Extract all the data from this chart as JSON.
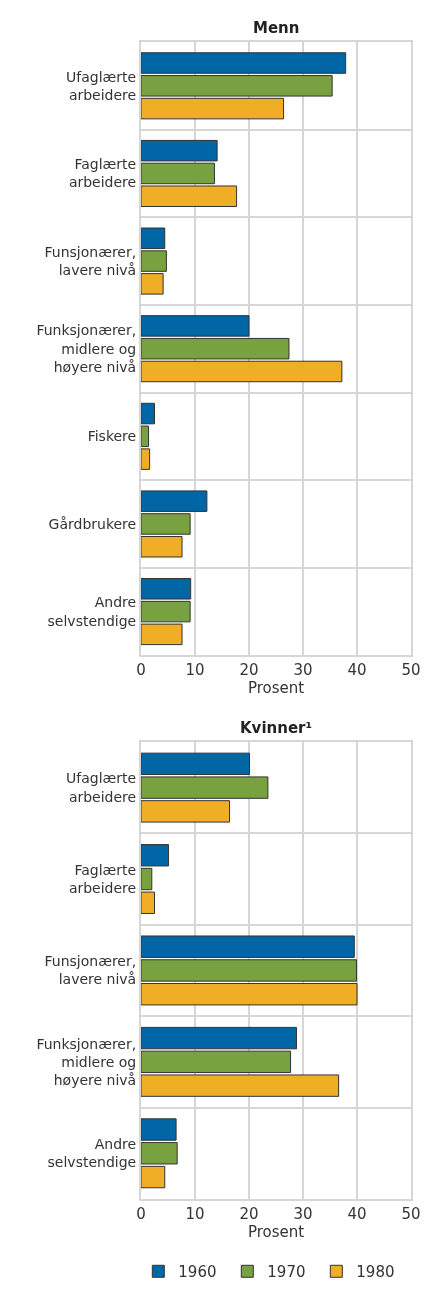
{
  "chart_data": [
    {
      "type": "bar",
      "orientation": "horizontal",
      "title": "Menn",
      "xlabel": "Prosent",
      "categories": [
        "Ufaglærte arbeidere",
        "Faglærte arbeidere",
        "Funsjonærer, lavere nivå",
        "Funksjonærer, midlere og høyere nivå",
        "Fiskere",
        "Gårdbrukere",
        "Andre selvstendige"
      ],
      "series": [
        {
          "name": "1960",
          "color": "#0066a6",
          "values": [
            37.9,
            14.1,
            4.4,
            20.0,
            2.5,
            12.2,
            9.2
          ]
        },
        {
          "name": "1970",
          "color": "#78a23f",
          "values": [
            35.4,
            13.6,
            4.7,
            27.4,
            1.4,
            9.1,
            9.1
          ]
        },
        {
          "name": "1980",
          "color": "#efae26",
          "values": [
            26.4,
            17.7,
            4.1,
            37.2,
            1.6,
            7.6,
            7.6
          ]
        }
      ],
      "xlim": [
        0,
        50
      ],
      "xticks": [
        0,
        10,
        20,
        30,
        40,
        50
      ],
      "grid": true,
      "legend": "bottom"
    },
    {
      "type": "bar",
      "orientation": "horizontal",
      "title": "Kvinner¹",
      "xlabel": "Prosent",
      "categories": [
        "Ufaglærte arbeidere",
        "Faglærte arbeidere",
        "Funsjonærer, lavere nivå",
        "Funksjonærer, midlere og høyere nivå",
        "Andre selvstendige"
      ],
      "series": [
        {
          "name": "1960",
          "color": "#0066a6",
          "values": [
            20.1,
            5.1,
            39.5,
            28.8,
            6.5
          ]
        },
        {
          "name": "1970",
          "color": "#78a23f",
          "values": [
            23.5,
            2.0,
            39.9,
            27.7,
            6.7
          ]
        },
        {
          "name": "1980",
          "color": "#efae26",
          "values": [
            16.4,
            2.5,
            40.0,
            36.6,
            4.4
          ]
        }
      ],
      "xlim": [
        0,
        50
      ],
      "xticks": [
        0,
        10,
        20,
        30,
        40,
        50
      ],
      "grid": true
    }
  ]
}
